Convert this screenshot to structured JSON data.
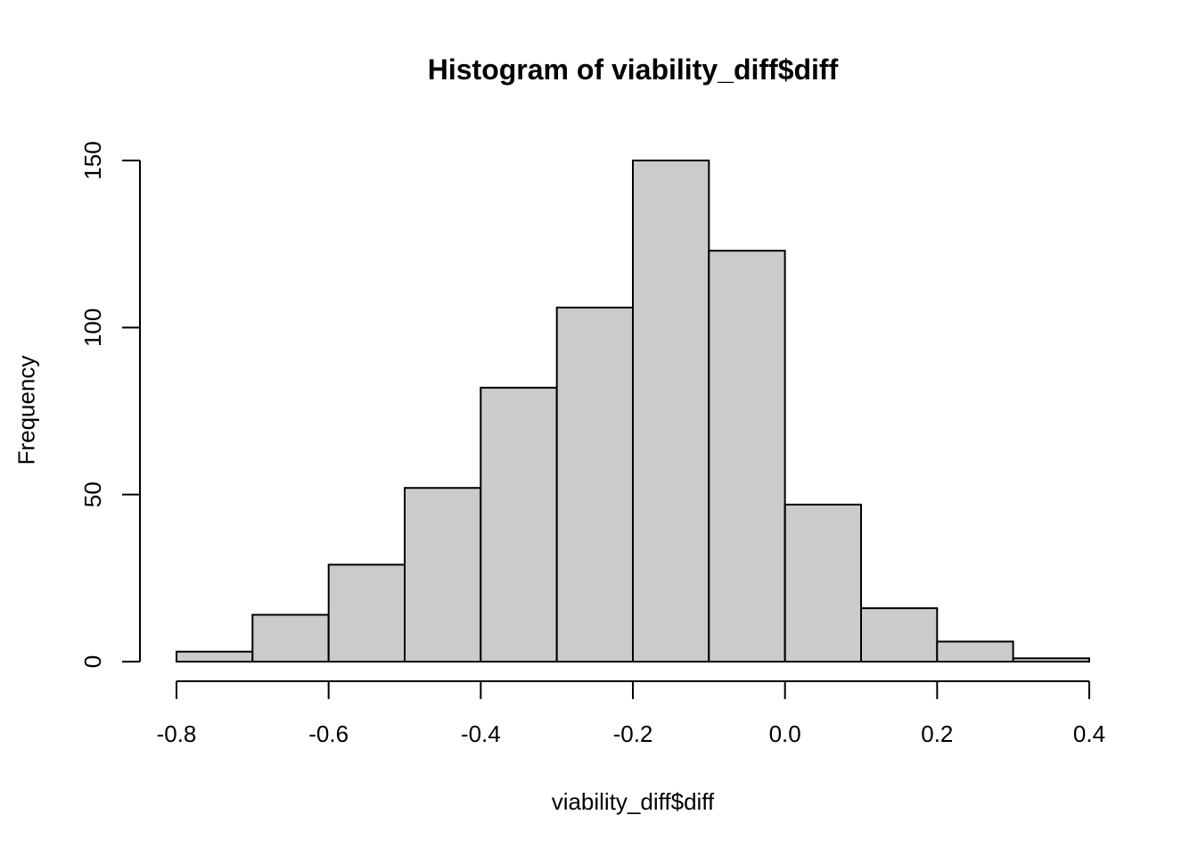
{
  "chart_data": {
    "type": "bar",
    "subtype": "histogram",
    "title": "Histogram of viability_diff$diff",
    "xlabel": "viability_diff$diff",
    "ylabel": "Frequency",
    "bin_start": -0.8,
    "bin_width": 0.1,
    "counts": [
      3,
      14,
      29,
      52,
      82,
      106,
      150,
      123,
      47,
      16,
      6,
      1
    ],
    "bin_edges": [
      -0.8,
      -0.7,
      -0.6,
      -0.5,
      -0.4,
      -0.3,
      -0.2,
      -0.1,
      0.0,
      0.1,
      0.2,
      0.3,
      0.4
    ],
    "x_ticks": [
      -0.8,
      -0.6,
      -0.4,
      -0.2,
      0.0,
      0.2,
      0.4
    ],
    "x_tick_labels": [
      "-0.8",
      "-0.6",
      "-0.4",
      "-0.2",
      "0.0",
      "0.2",
      "0.4"
    ],
    "y_ticks": [
      0,
      50,
      100,
      150
    ],
    "y_tick_labels": [
      "0",
      "50",
      "100",
      "150"
    ],
    "xlim": [
      -0.8,
      0.4
    ],
    "ylim": [
      0,
      150
    ],
    "grid": false,
    "legend_position": "none",
    "colors": {
      "bar_fill": "#CBCBCB",
      "bar_stroke": "#000000",
      "axis": "#000000",
      "background": "#FFFFFF"
    }
  }
}
